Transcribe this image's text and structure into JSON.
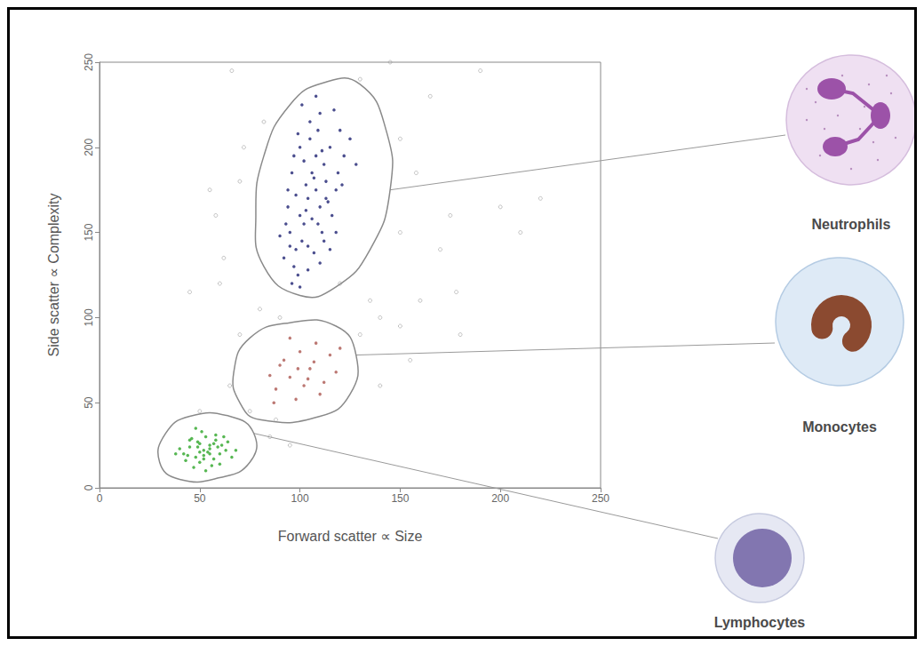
{
  "chart_data": {
    "type": "scatter",
    "xlabel": "Forward scatter ∝ Size",
    "ylabel": "Side scatter ∝ Complexity",
    "xlim": [
      0,
      250
    ],
    "ylim": [
      0,
      250
    ],
    "xticks": [
      0,
      50,
      100,
      150,
      200,
      250
    ],
    "yticks": [
      0,
      50,
      100,
      150,
      200,
      250
    ],
    "grid": false,
    "series": [
      {
        "color": "#a0a0a0",
        "marker": "ring",
        "x": [
          60,
          45,
          70,
          150,
          160,
          180,
          75,
          85,
          140,
          165,
          200,
          210,
          220,
          178,
          65,
          130,
          155,
          55,
          70,
          145,
          190,
          62,
          150,
          135,
          80,
          90,
          72,
          58,
          150,
          170,
          88,
          95,
          120,
          66,
          158,
          50,
          140,
          175,
          82,
          130
        ],
        "values": [
          120,
          115,
          90,
          150,
          110,
          90,
          45,
          30,
          100,
          230,
          165,
          150,
          170,
          115,
          60,
          240,
          75,
          175,
          180,
          250,
          245,
          135,
          95,
          110,
          105,
          100,
          200,
          160,
          205,
          140,
          40,
          25,
          120,
          245,
          185,
          45,
          60,
          160,
          215,
          90
        ]
      },
      {
        "name": "Neutrophils",
        "color": "#2b2f7a",
        "marker": "dot",
        "x": [
          100,
          108,
          95,
          112,
          104,
          98,
          115,
          110,
          92,
          106,
          120,
          102,
          97,
          113,
          108,
          101,
          118,
          94,
          110,
          105,
          99,
          116,
          103,
          111,
          96,
          122,
          107,
          100,
          114,
          93,
          109,
          104,
          117,
          98,
          112,
          106,
          102,
          119,
          95,
          108,
          125,
          100,
          113,
          97,
          110,
          105,
          90,
          121,
          103,
          115,
          107,
          99,
          111,
          94,
          118,
          104,
          128,
          101,
          109,
          96
        ],
        "values": [
          160,
          175,
          150,
          190,
          170,
          140,
          200,
          165,
          135,
          185,
          210,
          155,
          130,
          180,
          195,
          145,
          175,
          165,
          220,
          205,
          125,
          160,
          178,
          150,
          185,
          195,
          138,
          200,
          168,
          155,
          210,
          128,
          222,
          172,
          145,
          158,
          192,
          185,
          142,
          230,
          205,
          118,
          170,
          195,
          132,
          215,
          148,
          178,
          163,
          140,
          182,
          208,
          198,
          175,
          150,
          142,
          190,
          225,
          155,
          120
        ],
        "gate": [
          [
            100,
            113
          ],
          [
            118,
            118
          ],
          [
            135,
            140
          ],
          [
            145,
            175
          ],
          [
            143,
            210
          ],
          [
            130,
            237
          ],
          [
            112,
            238
          ],
          [
            95,
            225
          ],
          [
            82,
            195
          ],
          [
            78,
            160
          ],
          [
            82,
            130
          ]
        ]
      },
      {
        "name": "Monocytes",
        "color": "#b0605a",
        "marker": "dot",
        "x": [
          95,
          105,
          88,
          112,
          100,
          92,
          118,
          98,
          108,
          85,
          102,
          115,
          95,
          110,
          90,
          104,
          120,
          99,
          87,
          107
        ],
        "values": [
          65,
          70,
          58,
          62,
          80,
          75,
          68,
          52,
          85,
          66,
          60,
          78,
          88,
          55,
          72,
          64,
          82,
          70,
          50,
          74
        ],
        "gate": [
          [
            80,
            40
          ],
          [
            110,
            42
          ],
          [
            125,
            55
          ],
          [
            128,
            78
          ],
          [
            118,
            95
          ],
          [
            95,
            97
          ],
          [
            75,
            88
          ],
          [
            67,
            68
          ],
          [
            70,
            50
          ]
        ]
      },
      {
        "name": "Lymphocytes",
        "color": "#3aaa35",
        "marker": "dot",
        "x": [
          52,
          48,
          55,
          60,
          45,
          50,
          58,
          42,
          63,
          53,
          47,
          57,
          49,
          61,
          44,
          54,
          51,
          66,
          40,
          56,
          59,
          46,
          52,
          62,
          50,
          43,
          55,
          48,
          68,
          57,
          53,
          45,
          60,
          50,
          64,
          38,
          55,
          49,
          58,
          52
        ],
        "values": [
          22,
          18,
          25,
          20,
          24,
          15,
          28,
          20,
          22,
          30,
          12,
          17,
          27,
          25,
          19,
          21,
          33,
          18,
          23,
          13,
          24,
          29,
          19,
          30,
          26,
          16,
          20,
          35,
          22,
          26,
          10,
          28,
          14,
          21,
          27,
          20,
          23,
          24,
          31,
          17
        ],
        "gate": [
          [
            40,
            5
          ],
          [
            60,
            6
          ],
          [
            75,
            15
          ],
          [
            77,
            32
          ],
          [
            65,
            42
          ],
          [
            45,
            42
          ],
          [
            33,
            32
          ],
          [
            30,
            15
          ]
        ]
      }
    ]
  }
}
